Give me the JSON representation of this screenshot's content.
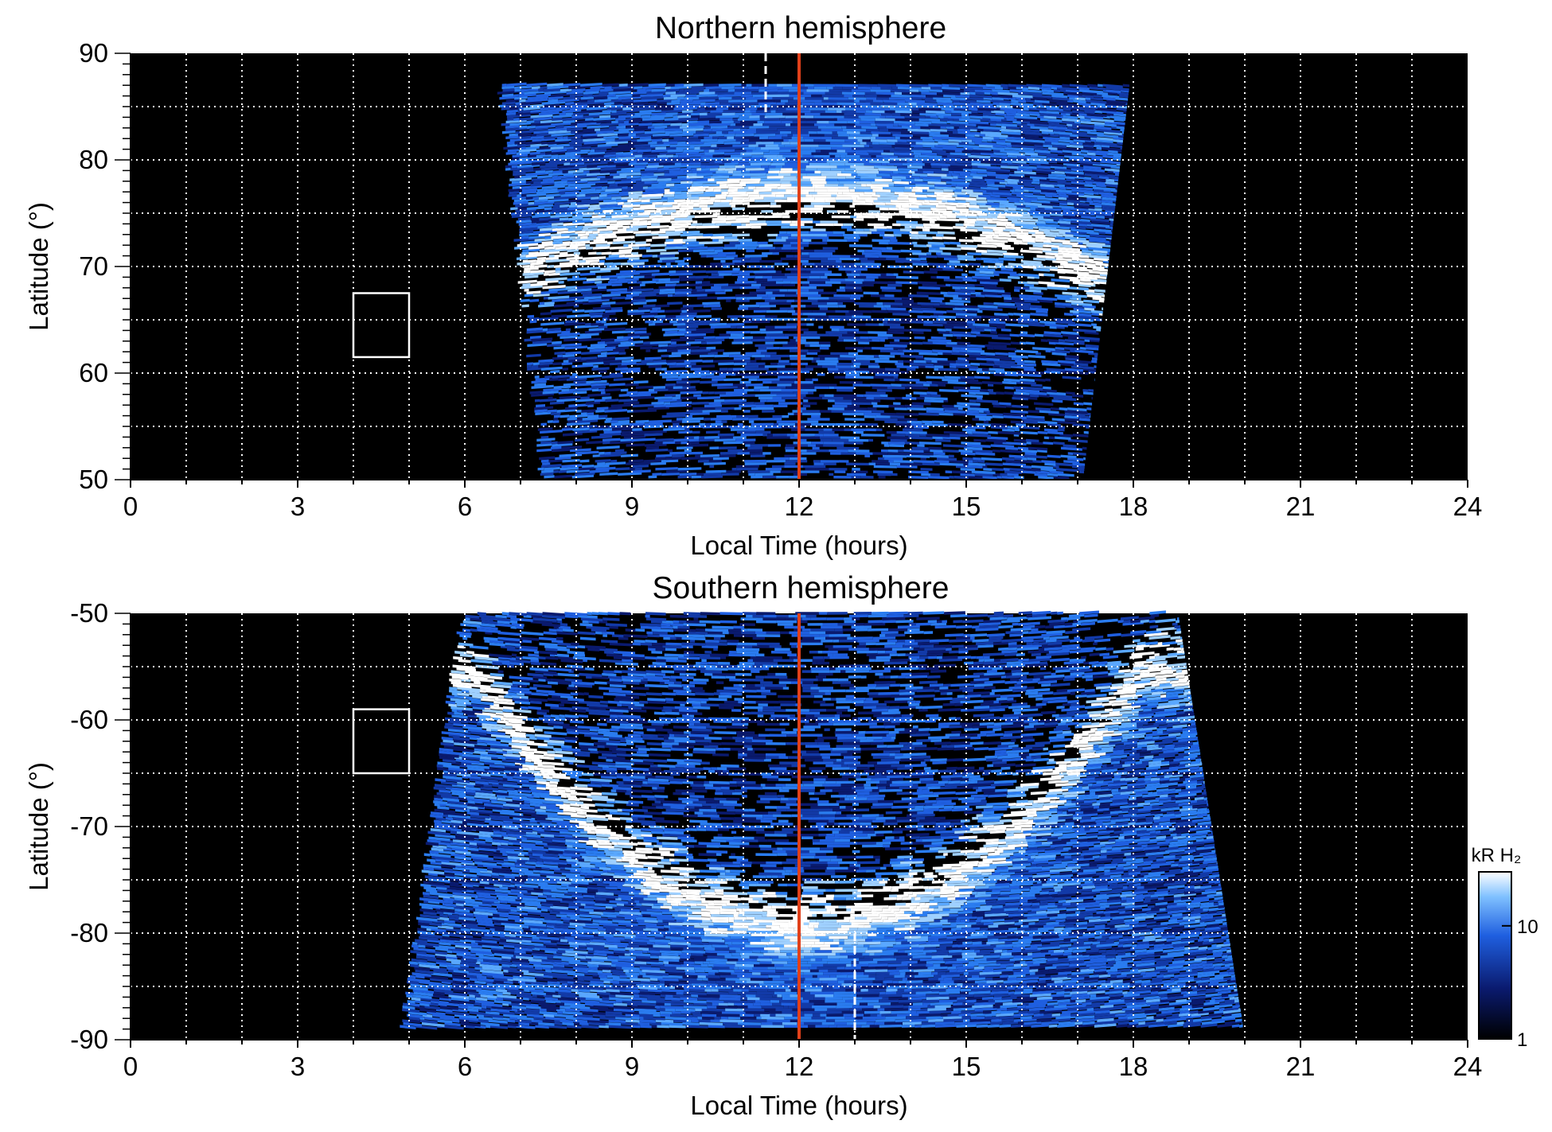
{
  "chart_data": [
    {
      "type": "heatmap",
      "title": "Northern hemisphere",
      "xlabel": "Local Time (hours)",
      "ylabel": "Latitude (°)",
      "xlim": [
        0,
        24
      ],
      "ylim": [
        50,
        90
      ],
      "x_ticks": [
        0,
        3,
        6,
        9,
        12,
        15,
        18,
        21,
        24
      ],
      "y_ticks": [
        50,
        60,
        70,
        80,
        90
      ],
      "x_tick_labels": [
        "0",
        "3",
        "6",
        "9",
        "12",
        "15",
        "18",
        "21",
        "24"
      ],
      "y_tick_labels": [
        "50",
        "60",
        "70",
        "80",
        "90"
      ],
      "grid": true,
      "grid_x_step": 1,
      "grid_y_step": 5,
      "background_color": "#000000",
      "data_extent": {
        "lt_min_at_pole": 6.5,
        "lt_max_at_pole": 18.0,
        "lat_min": 50,
        "lat_max": 87
      },
      "auroral_oval_lat": {
        "noon": 76,
        "flanks": 66
      },
      "inner_dark_region": {
        "lat_top_noon": 75,
        "lt_range": [
          8.0,
          16.0
        ]
      },
      "reference_lines": [
        {
          "x": 12.0,
          "color": "#e0401a",
          "style": "solid"
        },
        {
          "x": 11.4,
          "color": "#ffffff",
          "style": "dashed",
          "lat_range": [
            84,
            90
          ]
        }
      ],
      "box": {
        "lt": [
          4,
          5
        ],
        "lat": [
          61.5,
          67.5
        ]
      }
    },
    {
      "type": "heatmap",
      "title": "Southern hemisphere",
      "xlabel": "Local Time (hours)",
      "ylabel": "Latitude (°)",
      "xlim": [
        0,
        24
      ],
      "ylim": [
        -90,
        -50
      ],
      "x_ticks": [
        0,
        3,
        6,
        9,
        12,
        15,
        18,
        21,
        24
      ],
      "y_ticks": [
        -50,
        -60,
        -70,
        -80,
        -90
      ],
      "x_tick_labels": [
        "0",
        "3",
        "6",
        "9",
        "12",
        "15",
        "18",
        "21",
        "24"
      ],
      "y_tick_labels": [
        "-50",
        "-60",
        "-70",
        "-80",
        "-90"
      ],
      "grid": true,
      "grid_x_step": 1,
      "grid_y_step": 5,
      "background_color": "#000000",
      "data_extent": {
        "lt_min_at_pole": 4.8,
        "lt_max_at_pole": 20.0,
        "lat_min": -89,
        "lat_max": -50
      },
      "auroral_oval_lat": {
        "noon": -79,
        "flanks": -55
      },
      "inner_dark_region": {
        "lat_bottom_noon": -79,
        "lt_range": [
          7.5,
          17.0
        ]
      },
      "reference_lines": [
        {
          "x": 12.0,
          "color": "#e0401a",
          "style": "solid"
        },
        {
          "x": 13.0,
          "color": "#ffffff",
          "style": "dashed",
          "lat_range": [
            -90,
            -80
          ]
        }
      ],
      "box": {
        "lt": [
          4,
          5
        ],
        "lat": [
          -65,
          -59
        ]
      }
    }
  ],
  "colorbar": {
    "label": "kR H₂",
    "scale": "log",
    "range": [
      1,
      30
    ],
    "ticks": [
      1,
      10
    ],
    "tick_labels": [
      "1",
      "10"
    ],
    "colors": [
      "#000000",
      "#0a1a6e",
      "#1f5fe0",
      "#7fc0ff",
      "#ffffff"
    ]
  }
}
